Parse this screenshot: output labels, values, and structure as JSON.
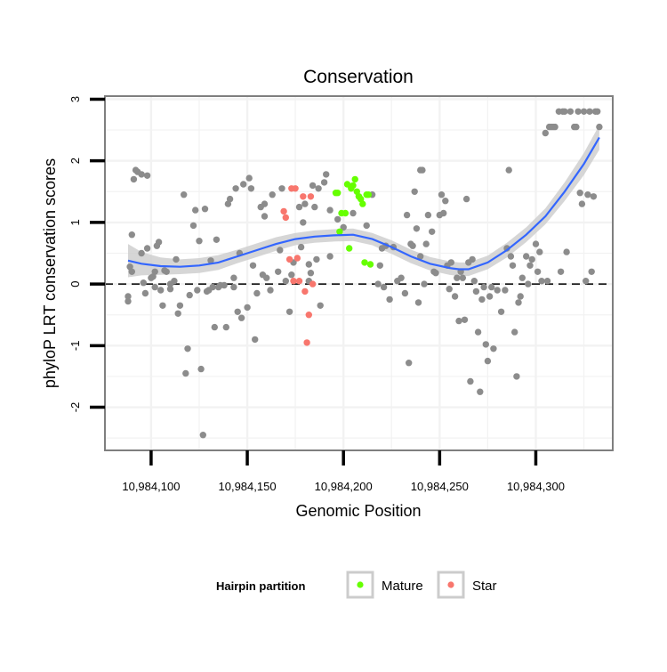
{
  "chart_data": {
    "type": "scatter",
    "title": "Conservation",
    "xlabel": "Genomic Position",
    "ylabel": "phyloP LRT conservation scores",
    "xlim": [
      10984076,
      10984340
    ],
    "ylim": [
      -2.7,
      3.05
    ],
    "x_ticks": [
      {
        "value": 10984100,
        "label": "10,984,100"
      },
      {
        "value": 10984150,
        "label": "10,984,150"
      },
      {
        "value": 10984200,
        "label": "10,984,200"
      },
      {
        "value": 10984250,
        "label": "10,984,250"
      },
      {
        "value": 10984300,
        "label": "10,984,300"
      }
    ],
    "y_ticks": [
      {
        "value": -2,
        "label": "-2"
      },
      {
        "value": -1,
        "label": "-1"
      },
      {
        "value": 0,
        "label": "0"
      },
      {
        "value": 1,
        "label": "1"
      },
      {
        "value": 2,
        "label": "2"
      },
      {
        "value": 3,
        "label": "3"
      }
    ],
    "grid": true,
    "reference_line": {
      "y": 0,
      "style": "dashed"
    },
    "colors": {
      "other": "#8c8c8c",
      "mature": "#66ff00",
      "star": "#f8766d",
      "smooth": "#3366ff",
      "ribbon": "#cfcfcf",
      "panel_border": "#7f7f7f",
      "grid": "#f2f2f2"
    },
    "legend": {
      "title": "Hairpin partition",
      "placement": "bottom",
      "entries": [
        {
          "label": "Mature",
          "color": "#66ff00"
        },
        {
          "label": "Star",
          "color": "#f8766d"
        }
      ]
    },
    "series": [
      {
        "name": "Other",
        "color": "#8c8c8c",
        "points": [
          [
            10984088,
            -0.2
          ],
          [
            10984088,
            -0.28
          ],
          [
            10984089,
            0.28
          ],
          [
            10984090,
            0.2
          ],
          [
            10984090,
            0.8
          ],
          [
            10984091,
            1.7
          ],
          [
            10984092,
            1.85
          ],
          [
            10984093,
            1.82
          ],
          [
            10984095,
            1.78
          ],
          [
            10984095,
            0.5
          ],
          [
            10984096,
            0.02
          ],
          [
            10984097,
            -0.15
          ],
          [
            10984098,
            0.58
          ],
          [
            10984098,
            1.76
          ],
          [
            10984100,
            0.1
          ],
          [
            10984101,
            0.12
          ],
          [
            10984102,
            0.2
          ],
          [
            10984102,
            -0.05
          ],
          [
            10984103,
            0.62
          ],
          [
            10984104,
            0.68
          ],
          [
            10984105,
            -0.1
          ],
          [
            10984106,
            -0.35
          ],
          [
            10984107,
            0.22
          ],
          [
            10984108,
            0.2
          ],
          [
            10984110,
            -0.08
          ],
          [
            10984110,
            0.0
          ],
          [
            10984112,
            0.05
          ],
          [
            10984113,
            0.4
          ],
          [
            10984114,
            -0.48
          ],
          [
            10984115,
            -0.35
          ],
          [
            10984117,
            1.45
          ],
          [
            10984118,
            -1.45
          ],
          [
            10984119,
            -1.05
          ],
          [
            10984120,
            -0.18
          ],
          [
            10984122,
            0.95
          ],
          [
            10984123,
            1.2
          ],
          [
            10984124,
            -0.1
          ],
          [
            10984125,
            0.7
          ],
          [
            10984126,
            -1.38
          ],
          [
            10984127,
            -2.45
          ],
          [
            10984128,
            1.22
          ],
          [
            10984129,
            -0.12
          ],
          [
            10984130,
            -0.1
          ],
          [
            10984131,
            0.38
          ],
          [
            10984132,
            -0.05
          ],
          [
            10984133,
            -0.7
          ],
          [
            10984134,
            0.72
          ],
          [
            10984135,
            -0.05
          ],
          [
            10984136,
            -0.02
          ],
          [
            10984138,
            -0.02
          ],
          [
            10984139,
            -0.7
          ],
          [
            10984140,
            1.3
          ],
          [
            10984141,
            1.38
          ],
          [
            10984143,
            0.1
          ],
          [
            10984143,
            -0.05
          ],
          [
            10984144,
            1.55
          ],
          [
            10984145,
            -0.45
          ],
          [
            10984146,
            0.5
          ],
          [
            10984147,
            -0.55
          ],
          [
            10984148,
            1.62
          ],
          [
            10984150,
            -0.38
          ],
          [
            10984151,
            1.72
          ],
          [
            10984152,
            1.55
          ],
          [
            10984153,
            0.3
          ],
          [
            10984154,
            -0.9
          ],
          [
            10984155,
            -0.15
          ],
          [
            10984157,
            1.25
          ],
          [
            10984158,
            0.15
          ],
          [
            10984159,
            1.1
          ],
          [
            10984159,
            1.3
          ],
          [
            10984160,
            0.1
          ],
          [
            10984162,
            -0.1
          ],
          [
            10984163,
            1.45
          ],
          [
            10984166,
            0.2
          ],
          [
            10984167,
            0.55
          ],
          [
            10984168,
            1.55
          ],
          [
            10984170,
            0.05
          ],
          [
            10984172,
            -0.45
          ],
          [
            10984173,
            0.15
          ],
          [
            10984174,
            0.35
          ],
          [
            10984177,
            1.25
          ],
          [
            10984178,
            0.6
          ],
          [
            10984179,
            1.0
          ],
          [
            10984180,
            1.3
          ],
          [
            10984182,
            0.32
          ],
          [
            10984182,
            0.05
          ],
          [
            10984183,
            0.18
          ],
          [
            10984184,
            1.6
          ],
          [
            10984185,
            1.25
          ],
          [
            10984186,
            0.4
          ],
          [
            10984187,
            1.55
          ],
          [
            10984188,
            -0.35
          ],
          [
            10984190,
            1.65
          ],
          [
            10984191,
            1.78
          ],
          [
            10984193,
            0.45
          ],
          [
            10984193,
            1.2
          ],
          [
            10984197,
            1.05
          ],
          [
            10984200,
            0.92
          ],
          [
            10984205,
            1.15
          ],
          [
            10984208,
            1.42
          ],
          [
            10984212,
            0.95
          ],
          [
            10984215,
            1.45
          ],
          [
            10984218,
            0.0
          ],
          [
            10984219,
            0.3
          ],
          [
            10984220,
            0.58
          ],
          [
            10984221,
            -0.05
          ],
          [
            10984222,
            0.62
          ],
          [
            10984224,
            -0.25
          ],
          [
            10984226,
            0.6
          ],
          [
            10984228,
            0.05
          ],
          [
            10984230,
            0.1
          ],
          [
            10984232,
            -0.15
          ],
          [
            10984233,
            1.12
          ],
          [
            10984234,
            -1.28
          ],
          [
            10984235,
            0.65
          ],
          [
            10984236,
            0.62
          ],
          [
            10984237,
            1.5
          ],
          [
            10984238,
            0.9
          ],
          [
            10984239,
            -0.3
          ],
          [
            10984240,
            1.85
          ],
          [
            10984240,
            0.45
          ],
          [
            10984241,
            1.85
          ],
          [
            10984242,
            0.0
          ],
          [
            10984243,
            0.65
          ],
          [
            10984244,
            1.12
          ],
          [
            10984246,
            0.85
          ],
          [
            10984247,
            0.2
          ],
          [
            10984248,
            0.18
          ],
          [
            10984250,
            1.12
          ],
          [
            10984251,
            1.45
          ],
          [
            10984252,
            1.15
          ],
          [
            10984253,
            1.35
          ],
          [
            10984254,
            0.3
          ],
          [
            10984255,
            -0.08
          ],
          [
            10984256,
            0.35
          ],
          [
            10984258,
            -0.2
          ],
          [
            10984259,
            0.1
          ],
          [
            10984260,
            -0.6
          ],
          [
            10984261,
            0.2
          ],
          [
            10984262,
            0.1
          ],
          [
            10984263,
            -0.58
          ],
          [
            10984264,
            1.38
          ],
          [
            10984265,
            0.35
          ],
          [
            10984266,
            -1.58
          ],
          [
            10984267,
            0.4
          ],
          [
            10984268,
            0.05
          ],
          [
            10984269,
            -0.12
          ],
          [
            10984270,
            -0.78
          ],
          [
            10984271,
            -1.75
          ],
          [
            10984272,
            -0.25
          ],
          [
            10984273,
            -0.05
          ],
          [
            10984274,
            -0.98
          ],
          [
            10984275,
            -1.25
          ],
          [
            10984276,
            -0.2
          ],
          [
            10984277,
            -0.05
          ],
          [
            10984278,
            -1.05
          ],
          [
            10984280,
            -0.1
          ],
          [
            10984282,
            -0.45
          ],
          [
            10984284,
            -0.1
          ],
          [
            10984285,
            0.58
          ],
          [
            10984286,
            1.85
          ],
          [
            10984287,
            0.45
          ],
          [
            10984288,
            0.3
          ],
          [
            10984289,
            -0.78
          ],
          [
            10984290,
            -1.5
          ],
          [
            10984291,
            -0.3
          ],
          [
            10984292,
            -0.2
          ],
          [
            10984293,
            0.1
          ],
          [
            10984295,
            0.45
          ],
          [
            10984296,
            0.0
          ],
          [
            10984297,
            0.3
          ],
          [
            10984298,
            0.4
          ],
          [
            10984300,
            0.65
          ],
          [
            10984301,
            0.2
          ],
          [
            10984302,
            0.52
          ],
          [
            10984303,
            0.05
          ],
          [
            10984305,
            2.45
          ],
          [
            10984306,
            0.05
          ],
          [
            10984307,
            2.55
          ],
          [
            10984308,
            2.55
          ],
          [
            10984309,
            2.55
          ],
          [
            10984310,
            2.55
          ],
          [
            10984312,
            2.8
          ],
          [
            10984313,
            0.2
          ],
          [
            10984314,
            2.8
          ],
          [
            10984315,
            2.8
          ],
          [
            10984316,
            0.52
          ],
          [
            10984318,
            2.8
          ],
          [
            10984320,
            2.55
          ],
          [
            10984321,
            2.55
          ],
          [
            10984322,
            2.8
          ],
          [
            10984323,
            1.48
          ],
          [
            10984324,
            1.3
          ],
          [
            10984325,
            2.8
          ],
          [
            10984326,
            0.05
          ],
          [
            10984327,
            1.45
          ],
          [
            10984328,
            2.8
          ],
          [
            10984329,
            0.2
          ],
          [
            10984330,
            1.42
          ],
          [
            10984331,
            2.8
          ],
          [
            10984332,
            2.8
          ],
          [
            10984333,
            2.55
          ]
        ]
      },
      {
        "name": "Mature",
        "color": "#66ff00",
        "points": [
          [
            10984196,
            1.48
          ],
          [
            10984197,
            1.48
          ],
          [
            10984198,
            0.85
          ],
          [
            10984199,
            1.15
          ],
          [
            10984201,
            1.15
          ],
          [
            10984202,
            1.62
          ],
          [
            10984203,
            0.58
          ],
          [
            10984204,
            1.55
          ],
          [
            10984205,
            1.6
          ],
          [
            10984206,
            1.7
          ],
          [
            10984207,
            1.5
          ],
          [
            10984208,
            1.42
          ],
          [
            10984209,
            1.38
          ],
          [
            10984210,
            1.3
          ],
          [
            10984211,
            0.35
          ],
          [
            10984212,
            1.45
          ],
          [
            10984213,
            1.45
          ],
          [
            10984214,
            0.32
          ]
        ]
      },
      {
        "name": "Star",
        "color": "#f8766d",
        "points": [
          [
            10984169,
            1.18
          ],
          [
            10984170,
            1.08
          ],
          [
            10984172,
            0.4
          ],
          [
            10984173,
            1.55
          ],
          [
            10984174,
            0.05
          ],
          [
            10984175,
            1.55
          ],
          [
            10984176,
            0.42
          ],
          [
            10984177,
            0.05
          ],
          [
            10984179,
            1.42
          ],
          [
            10984180,
            -0.12
          ],
          [
            10984181,
            -0.95
          ],
          [
            10984182,
            -0.5
          ],
          [
            10984183,
            1.42
          ],
          [
            10984184,
            0.0
          ]
        ]
      }
    ],
    "smooth_curve": {
      "method": "loess",
      "x": [
        10984088,
        10984095,
        10984105,
        10984115,
        10984125,
        10984135,
        10984145,
        10984155,
        10984165,
        10984175,
        10984185,
        10984195,
        10984205,
        10984215,
        10984225,
        10984235,
        10984245,
        10984255,
        10984260,
        10984265,
        10984275,
        10984285,
        10984295,
        10984305,
        10984315,
        10984325,
        10984333
      ],
      "y": [
        0.38,
        0.33,
        0.29,
        0.28,
        0.3,
        0.35,
        0.45,
        0.55,
        0.65,
        0.73,
        0.77,
        0.79,
        0.8,
        0.73,
        0.6,
        0.45,
        0.33,
        0.26,
        0.24,
        0.24,
        0.35,
        0.55,
        0.8,
        1.1,
        1.5,
        1.95,
        2.38
      ],
      "se": [
        0.27,
        0.19,
        0.14,
        0.12,
        0.12,
        0.12,
        0.11,
        0.11,
        0.11,
        0.1,
        0.1,
        0.1,
        0.1,
        0.1,
        0.11,
        0.11,
        0.11,
        0.11,
        0.11,
        0.11,
        0.11,
        0.12,
        0.12,
        0.13,
        0.15,
        0.18,
        0.2
      ]
    }
  }
}
